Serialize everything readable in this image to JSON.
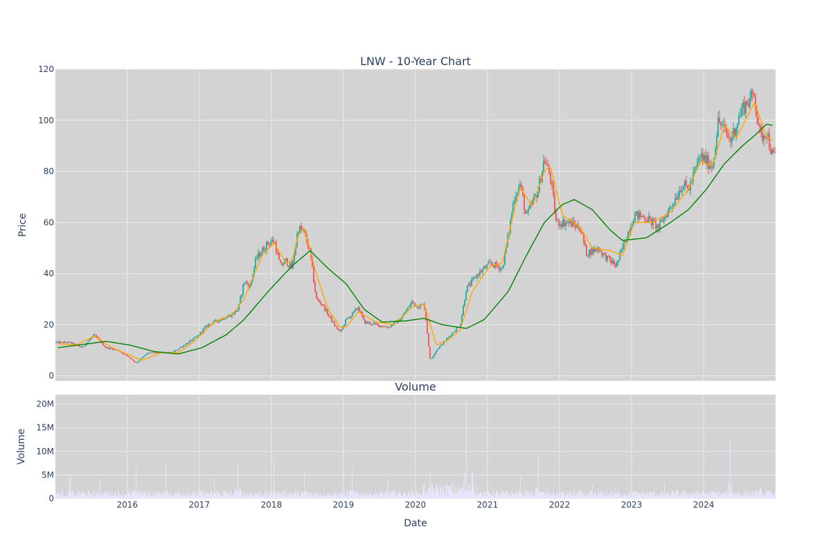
{
  "chart_data": [
    {
      "type": "candlestick",
      "title": "LNW - 10-Year Chart",
      "ylabel": "Price",
      "ylim": [
        -2,
        120
      ],
      "yticks": [
        0,
        20,
        40,
        60,
        80,
        100,
        120
      ],
      "x_range": [
        "2015-01-02",
        "2024-12-31"
      ],
      "xtick_labels": [
        "2016",
        "2017",
        "2018",
        "2019",
        "2020",
        "2021",
        "2022",
        "2023",
        "2024"
      ],
      "grid": true,
      "legend": "none",
      "candle_colors": {
        "up": "#26a69a",
        "down": "#ef5350"
      },
      "series": [
        {
          "values_desc": "close_approx",
          "values": [
            {
              "x": "2015-01",
              "y": 13
            },
            {
              "x": "2015-03",
              "y": 13
            },
            {
              "x": "2015-05",
              "y": 11
            },
            {
              "x": "2015-07",
              "y": 16
            },
            {
              "x": "2015-09",
              "y": 11
            },
            {
              "x": "2015-11",
              "y": 10
            },
            {
              "x": "2016-01",
              "y": 7
            },
            {
              "x": "2016-02",
              "y": 5
            },
            {
              "x": "2016-04",
              "y": 9
            },
            {
              "x": "2016-06",
              "y": 9
            },
            {
              "x": "2016-08",
              "y": 9
            },
            {
              "x": "2016-10",
              "y": 12
            },
            {
              "x": "2016-12",
              "y": 15
            },
            {
              "x": "2017-02",
              "y": 20
            },
            {
              "x": "2017-04",
              "y": 22
            },
            {
              "x": "2017-06",
              "y": 24
            },
            {
              "x": "2017-07",
              "y": 26
            },
            {
              "x": "2017-08",
              "y": 37
            },
            {
              "x": "2017-09",
              "y": 35
            },
            {
              "x": "2017-10",
              "y": 46
            },
            {
              "x": "2017-12",
              "y": 52
            },
            {
              "x": "2018-01",
              "y": 53
            },
            {
              "x": "2018-02",
              "y": 43
            },
            {
              "x": "2018-03",
              "y": 45
            },
            {
              "x": "2018-04",
              "y": 42
            },
            {
              "x": "2018-05",
              "y": 58
            },
            {
              "x": "2018-06",
              "y": 56
            },
            {
              "x": "2018-07",
              "y": 48
            },
            {
              "x": "2018-08",
              "y": 30
            },
            {
              "x": "2018-09",
              "y": 28
            },
            {
              "x": "2018-10",
              "y": 24
            },
            {
              "x": "2018-11",
              "y": 20
            },
            {
              "x": "2018-12",
              "y": 17
            },
            {
              "x": "2019-01",
              "y": 22
            },
            {
              "x": "2019-02",
              "y": 24
            },
            {
              "x": "2019-03",
              "y": 27
            },
            {
              "x": "2019-04",
              "y": 21
            },
            {
              "x": "2019-06",
              "y": 20
            },
            {
              "x": "2019-08",
              "y": 19
            },
            {
              "x": "2019-10",
              "y": 22
            },
            {
              "x": "2019-12",
              "y": 29
            },
            {
              "x": "2020-01",
              "y": 27
            },
            {
              "x": "2020-02",
              "y": 28
            },
            {
              "x": "2020-03",
              "y": 6
            },
            {
              "x": "2020-04",
              "y": 10
            },
            {
              "x": "2020-06",
              "y": 15
            },
            {
              "x": "2020-08",
              "y": 20
            },
            {
              "x": "2020-09",
              "y": 34
            },
            {
              "x": "2020-11",
              "y": 40
            },
            {
              "x": "2021-01",
              "y": 44
            },
            {
              "x": "2021-03",
              "y": 42
            },
            {
              "x": "2021-04",
              "y": 55
            },
            {
              "x": "2021-05",
              "y": 70
            },
            {
              "x": "2021-06",
              "y": 75
            },
            {
              "x": "2021-07",
              "y": 62
            },
            {
              "x": "2021-09",
              "y": 73
            },
            {
              "x": "2021-10",
              "y": 85
            },
            {
              "x": "2021-11",
              "y": 78
            },
            {
              "x": "2021-12",
              "y": 60
            },
            {
              "x": "2022-02",
              "y": 60
            },
            {
              "x": "2022-04",
              "y": 58
            },
            {
              "x": "2022-05",
              "y": 48
            },
            {
              "x": "2022-07",
              "y": 50
            },
            {
              "x": "2022-08",
              "y": 47
            },
            {
              "x": "2022-10",
              "y": 43
            },
            {
              "x": "2022-11",
              "y": 50
            },
            {
              "x": "2023-01",
              "y": 63
            },
            {
              "x": "2023-03",
              "y": 62
            },
            {
              "x": "2023-05",
              "y": 58
            },
            {
              "x": "2023-07",
              "y": 66
            },
            {
              "x": "2023-09",
              "y": 75
            },
            {
              "x": "2023-10",
              "y": 73
            },
            {
              "x": "2023-12",
              "y": 86
            },
            {
              "x": "2024-02",
              "y": 82
            },
            {
              "x": "2024-03",
              "y": 100
            },
            {
              "x": "2024-05",
              "y": 92
            },
            {
              "x": "2024-07",
              "y": 105
            },
            {
              "x": "2024-09",
              "y": 110
            },
            {
              "x": "2024-10",
              "y": 93
            },
            {
              "x": "2024-11",
              "y": 96
            },
            {
              "x": "2024-12",
              "y": 86
            }
          ]
        },
        {
          "values_desc": "ma_short",
          "color": "#ffa500",
          "values": [
            {
              "x": "2015-01",
              "y": 12.5
            },
            {
              "x": "2015-04",
              "y": 12
            },
            {
              "x": "2015-07",
              "y": 15.5
            },
            {
              "x": "2015-10",
              "y": 11
            },
            {
              "x": "2016-01",
              "y": 8
            },
            {
              "x": "2016-03",
              "y": 6
            },
            {
              "x": "2016-06",
              "y": 9
            },
            {
              "x": "2016-09",
              "y": 9
            },
            {
              "x": "2016-12",
              "y": 14
            },
            {
              "x": "2017-03",
              "y": 21
            },
            {
              "x": "2017-06",
              "y": 24
            },
            {
              "x": "2017-08",
              "y": 30
            },
            {
              "x": "2017-09",
              "y": 36
            },
            {
              "x": "2017-11",
              "y": 47
            },
            {
              "x": "2018-01",
              "y": 52
            },
            {
              "x": "2018-03",
              "y": 44
            },
            {
              "x": "2018-04",
              "y": 45
            },
            {
              "x": "2018-05",
              "y": 55
            },
            {
              "x": "2018-06",
              "y": 58
            },
            {
              "x": "2018-08",
              "y": 40
            },
            {
              "x": "2018-10",
              "y": 26
            },
            {
              "x": "2018-12",
              "y": 19
            },
            {
              "x": "2019-01",
              "y": 19
            },
            {
              "x": "2019-03",
              "y": 25
            },
            {
              "x": "2019-06",
              "y": 21
            },
            {
              "x": "2019-09",
              "y": 20
            },
            {
              "x": "2019-12",
              "y": 27
            },
            {
              "x": "2020-02",
              "y": 28
            },
            {
              "x": "2020-04",
              "y": 12
            },
            {
              "x": "2020-06",
              "y": 14
            },
            {
              "x": "2020-08",
              "y": 18
            },
            {
              "x": "2020-10",
              "y": 33
            },
            {
              "x": "2021-01",
              "y": 43
            },
            {
              "x": "2021-03",
              "y": 44
            },
            {
              "x": "2021-05",
              "y": 65
            },
            {
              "x": "2021-06",
              "y": 74
            },
            {
              "x": "2021-08",
              "y": 66
            },
            {
              "x": "2021-10",
              "y": 80
            },
            {
              "x": "2021-11",
              "y": 82
            },
            {
              "x": "2022-01",
              "y": 63
            },
            {
              "x": "2022-04",
              "y": 58
            },
            {
              "x": "2022-06",
              "y": 50
            },
            {
              "x": "2022-09",
              "y": 49
            },
            {
              "x": "2022-11",
              "y": 47
            },
            {
              "x": "2023-01",
              "y": 60
            },
            {
              "x": "2023-04",
              "y": 60
            },
            {
              "x": "2023-07",
              "y": 64
            },
            {
              "x": "2023-10",
              "y": 73
            },
            {
              "x": "2023-12",
              "y": 84
            },
            {
              "x": "2024-02",
              "y": 82
            },
            {
              "x": "2024-04",
              "y": 98
            },
            {
              "x": "2024-06",
              "y": 93
            },
            {
              "x": "2024-09",
              "y": 107
            },
            {
              "x": "2024-11",
              "y": 94
            },
            {
              "x": "2024-12",
              "y": 92
            }
          ]
        },
        {
          "values_desc": "ma_long",
          "color": "#008000",
          "values": [
            {
              "x": "2015-01",
              "y": 11
            },
            {
              "x": "2015-06",
              "y": 12.5
            },
            {
              "x": "2015-09",
              "y": 13.5
            },
            {
              "x": "2016-01",
              "y": 12
            },
            {
              "x": "2016-05",
              "y": 9.5
            },
            {
              "x": "2016-09",
              "y": 8.5
            },
            {
              "x": "2017-01",
              "y": 11
            },
            {
              "x": "2017-05",
              "y": 16
            },
            {
              "x": "2017-08",
              "y": 22
            },
            {
              "x": "2017-12",
              "y": 33
            },
            {
              "x": "2018-04",
              "y": 43
            },
            {
              "x": "2018-07",
              "y": 49
            },
            {
              "x": "2018-10",
              "y": 42
            },
            {
              "x": "2019-01",
              "y": 36
            },
            {
              "x": "2019-04",
              "y": 26
            },
            {
              "x": "2019-07",
              "y": 21
            },
            {
              "x": "2019-11",
              "y": 21.5
            },
            {
              "x": "2020-02",
              "y": 22.5
            },
            {
              "x": "2020-05",
              "y": 20
            },
            {
              "x": "2020-09",
              "y": 18.5
            },
            {
              "x": "2020-12",
              "y": 22
            },
            {
              "x": "2021-04",
              "y": 33
            },
            {
              "x": "2021-07",
              "y": 47
            },
            {
              "x": "2021-10",
              "y": 60
            },
            {
              "x": "2022-01",
              "y": 67
            },
            {
              "x": "2022-03",
              "y": 69
            },
            {
              "x": "2022-06",
              "y": 65
            },
            {
              "x": "2022-09",
              "y": 57
            },
            {
              "x": "2022-11",
              "y": 53
            },
            {
              "x": "2023-03",
              "y": 54
            },
            {
              "x": "2023-07",
              "y": 60
            },
            {
              "x": "2023-10",
              "y": 65
            },
            {
              "x": "2024-01",
              "y": 73
            },
            {
              "x": "2024-04",
              "y": 83
            },
            {
              "x": "2024-07",
              "y": 90
            },
            {
              "x": "2024-09",
              "y": 94
            },
            {
              "x": "2024-11",
              "y": 98.5
            },
            {
              "x": "2024-12",
              "y": 98
            }
          ]
        }
      ]
    },
    {
      "type": "bar",
      "title": "Volume",
      "xlabel": "Date",
      "ylabel": "Volume",
      "ylim": [
        0,
        22000000
      ],
      "yticks": [
        0,
        5000000,
        10000000,
        15000000,
        20000000
      ],
      "ytick_labels": [
        "0",
        "5M",
        "10M",
        "15M",
        "20M"
      ],
      "xtick_labels": [
        "2016",
        "2017",
        "2018",
        "2019",
        "2020",
        "2021",
        "2022",
        "2023",
        "2024"
      ],
      "bar_color": "#e6e6fa",
      "grid": true,
      "spikes": [
        {
          "x": "2015-03",
          "y": 4500000
        },
        {
          "x": "2015-08",
          "y": 4000000
        },
        {
          "x": "2016-02",
          "y": 6800000
        },
        {
          "x": "2016-07",
          "y": 7000000
        },
        {
          "x": "2017-03",
          "y": 4200000
        },
        {
          "x": "2017-07",
          "y": 8000000
        },
        {
          "x": "2018-01",
          "y": 8500000
        },
        {
          "x": "2018-06",
          "y": 6000000
        },
        {
          "x": "2019-02",
          "y": 6500000
        },
        {
          "x": "2019-08",
          "y": 3800000
        },
        {
          "x": "2020-03",
          "y": 6000000
        },
        {
          "x": "2020-09",
          "y": 21000000
        },
        {
          "x": "2020-10",
          "y": 5500000
        },
        {
          "x": "2021-06",
          "y": 4500000
        },
        {
          "x": "2021-09",
          "y": 9500000
        },
        {
          "x": "2022-06",
          "y": 3000000
        },
        {
          "x": "2023-06",
          "y": 3200000
        },
        {
          "x": "2024-05",
          "y": 12500000
        },
        {
          "x": "2024-10",
          "y": 2500000
        }
      ],
      "base_level": 1200000
    }
  ]
}
